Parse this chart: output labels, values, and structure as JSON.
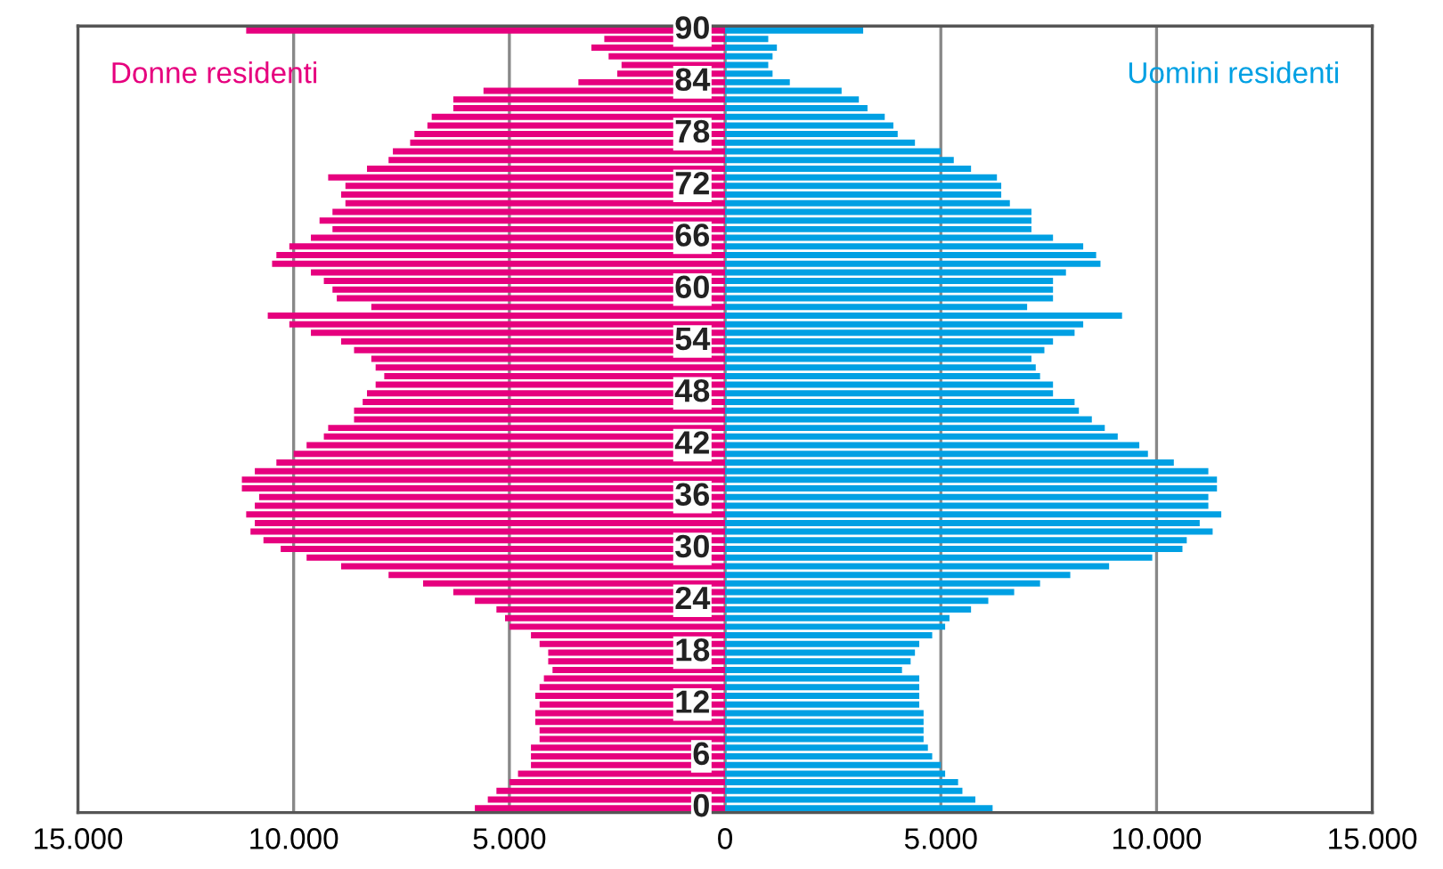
{
  "chart_data": {
    "type": "bar",
    "orientation": "horizontal",
    "categories": [
      "90",
      null,
      null,
      null,
      null,
      null,
      "84",
      null,
      null,
      null,
      null,
      null,
      "78",
      null,
      null,
      null,
      null,
      null,
      "72",
      null,
      null,
      null,
      null,
      null,
      "66",
      null,
      null,
      null,
      null,
      null,
      "60",
      null,
      null,
      null,
      null,
      null,
      "54",
      null,
      null,
      null,
      null,
      null,
      "48",
      null,
      null,
      null,
      null,
      null,
      "42",
      null,
      null,
      null,
      null,
      null,
      "36",
      null,
      null,
      null,
      null,
      null,
      "30",
      null,
      null,
      null,
      null,
      null,
      "24",
      null,
      null,
      null,
      null,
      null,
      "18",
      null,
      null,
      null,
      null,
      null,
      "12",
      null,
      null,
      null,
      null,
      null,
      "6",
      null,
      null,
      null,
      null,
      null,
      "0"
    ],
    "series": [
      {
        "name": "Donne residenti",
        "color": "#e6007e",
        "values": [
          -11100,
          -2800,
          -3100,
          -2700,
          -2400,
          -2500,
          -3400,
          -5600,
          -6300,
          -6300,
          -6800,
          -6900,
          -7200,
          -7300,
          -7700,
          -7800,
          -8300,
          -9200,
          -8800,
          -8900,
          -8800,
          -9100,
          -9400,
          -9100,
          -9600,
          -10100,
          -10400,
          -10500,
          -9600,
          -9300,
          -9100,
          -9000,
          -8200,
          -10600,
          -10100,
          -9600,
          -8900,
          -8600,
          -8200,
          -8100,
          -7900,
          -8100,
          -8300,
          -8400,
          -8600,
          -8600,
          -9200,
          -9300,
          -9700,
          -10000,
          -10400,
          -10900,
          -11200,
          -11200,
          -10800,
          -10900,
          -11100,
          -10900,
          -11000,
          -10700,
          -10300,
          -9700,
          -8900,
          -7800,
          -7000,
          -6300,
          -5800,
          -5300,
          -5100,
          -5000,
          -4500,
          -4300,
          -4100,
          -4100,
          -4000,
          -4200,
          -4300,
          -4400,
          -4300,
          -4400,
          -4400,
          -4300,
          -4300,
          -4500,
          -4500,
          -4500,
          -4800,
          -5000,
          -5300,
          -5500,
          -5800
        ]
      },
      {
        "name": "Uomini residenti",
        "color": "#00a0e3",
        "values": [
          3200,
          1000,
          1200,
          1100,
          1000,
          1100,
          1500,
          2700,
          3100,
          3300,
          3700,
          3900,
          4000,
          4400,
          5000,
          5300,
          5700,
          6300,
          6400,
          6400,
          6600,
          7100,
          7100,
          7100,
          7600,
          8300,
          8600,
          8700,
          7900,
          7600,
          7600,
          7600,
          7000,
          9200,
          8300,
          8100,
          7600,
          7400,
          7100,
          7200,
          7300,
          7600,
          7600,
          8100,
          8200,
          8500,
          8800,
          9100,
          9600,
          9800,
          10400,
          11200,
          11400,
          11400,
          11200,
          11200,
          11500,
          11000,
          11300,
          10700,
          10600,
          9900,
          8900,
          8000,
          7300,
          6700,
          6100,
          5700,
          5200,
          5100,
          4800,
          4500,
          4400,
          4300,
          4100,
          4500,
          4500,
          4500,
          4500,
          4600,
          4600,
          4600,
          4600,
          4700,
          4800,
          5000,
          5100,
          5400,
          5500,
          5800,
          6200
        ]
      }
    ],
    "xlim": [
      -15000,
      15000
    ],
    "xticks": [
      {
        "value": -15000,
        "label": "15.000"
      },
      {
        "value": -10000,
        "label": "10.000"
      },
      {
        "value": -5000,
        "label": "5.000"
      },
      0,
      {
        "value": 5000,
        "label": "5.000"
      },
      {
        "value": 10000,
        "label": "10.000"
      },
      {
        "value": 15000,
        "label": "15.000"
      }
    ],
    "stacked": true,
    "grid": "x",
    "legend": false
  }
}
